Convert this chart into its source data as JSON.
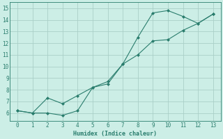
{
  "xlabel": "Humidex (Indice chaleur)",
  "line1_x": [
    0,
    1,
    2,
    3,
    4,
    5,
    6,
    7,
    8,
    9,
    10,
    11,
    12,
    13
  ],
  "line1_y": [
    6.2,
    6.0,
    6.0,
    5.8,
    6.2,
    8.2,
    8.5,
    10.2,
    12.5,
    14.6,
    14.8,
    14.3,
    13.7,
    14.5
  ],
  "line2_x": [
    0,
    1,
    2,
    3,
    4,
    5,
    6,
    7,
    8,
    9,
    10,
    11,
    12,
    13
  ],
  "line2_y": [
    6.2,
    6.0,
    7.3,
    6.8,
    7.5,
    8.2,
    8.7,
    10.2,
    11.0,
    12.2,
    12.3,
    13.1,
    13.7,
    14.5
  ],
  "line_color": "#2a7d6d",
  "bg_color": "#cceee6",
  "grid_color": "#aacfc8",
  "xlim": [
    -0.5,
    13.5
  ],
  "ylim": [
    5.3,
    15.5
  ],
  "xticks": [
    0,
    1,
    2,
    3,
    4,
    5,
    6,
    7,
    8,
    9,
    10,
    11,
    12,
    13
  ],
  "yticks": [
    6,
    7,
    8,
    9,
    10,
    11,
    12,
    13,
    14,
    15
  ]
}
